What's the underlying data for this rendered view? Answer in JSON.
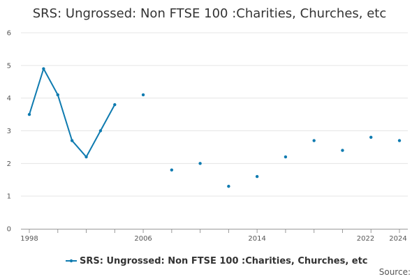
{
  "chart_data": {
    "type": "line",
    "title": "SRS: Ungrossed: Non FTSE 100 :Charities, Churches, etc",
    "xlabel": "",
    "ylabel": "",
    "ylim": [
      0,
      6
    ],
    "y_ticks": [
      "0",
      "1",
      "2",
      "3",
      "4",
      "5",
      "6"
    ],
    "xlim": [
      1998,
      2024
    ],
    "x_ticks": [
      "1998",
      "2006",
      "2014",
      "2022",
      "2024"
    ],
    "grid": true,
    "legend_position": "bottom",
    "series": [
      {
        "name": "SRS: Ungrossed: Non FTSE 100 :Charities, Churches, etc",
        "color": "#0f7bb0",
        "x": [
          1998,
          1999,
          2000,
          2001,
          2002,
          2003,
          2004,
          2006,
          2008,
          2010,
          2012,
          2014,
          2016,
          2018,
          2020,
          2022,
          2024
        ],
        "values": [
          3.5,
          4.9,
          4.1,
          2.7,
          2.2,
          3.0,
          3.8,
          4.1,
          1.8,
          2.0,
          1.3,
          1.6,
          2.2,
          2.7,
          2.4,
          2.8,
          2.7
        ]
      }
    ]
  },
  "source_label": "Source:"
}
